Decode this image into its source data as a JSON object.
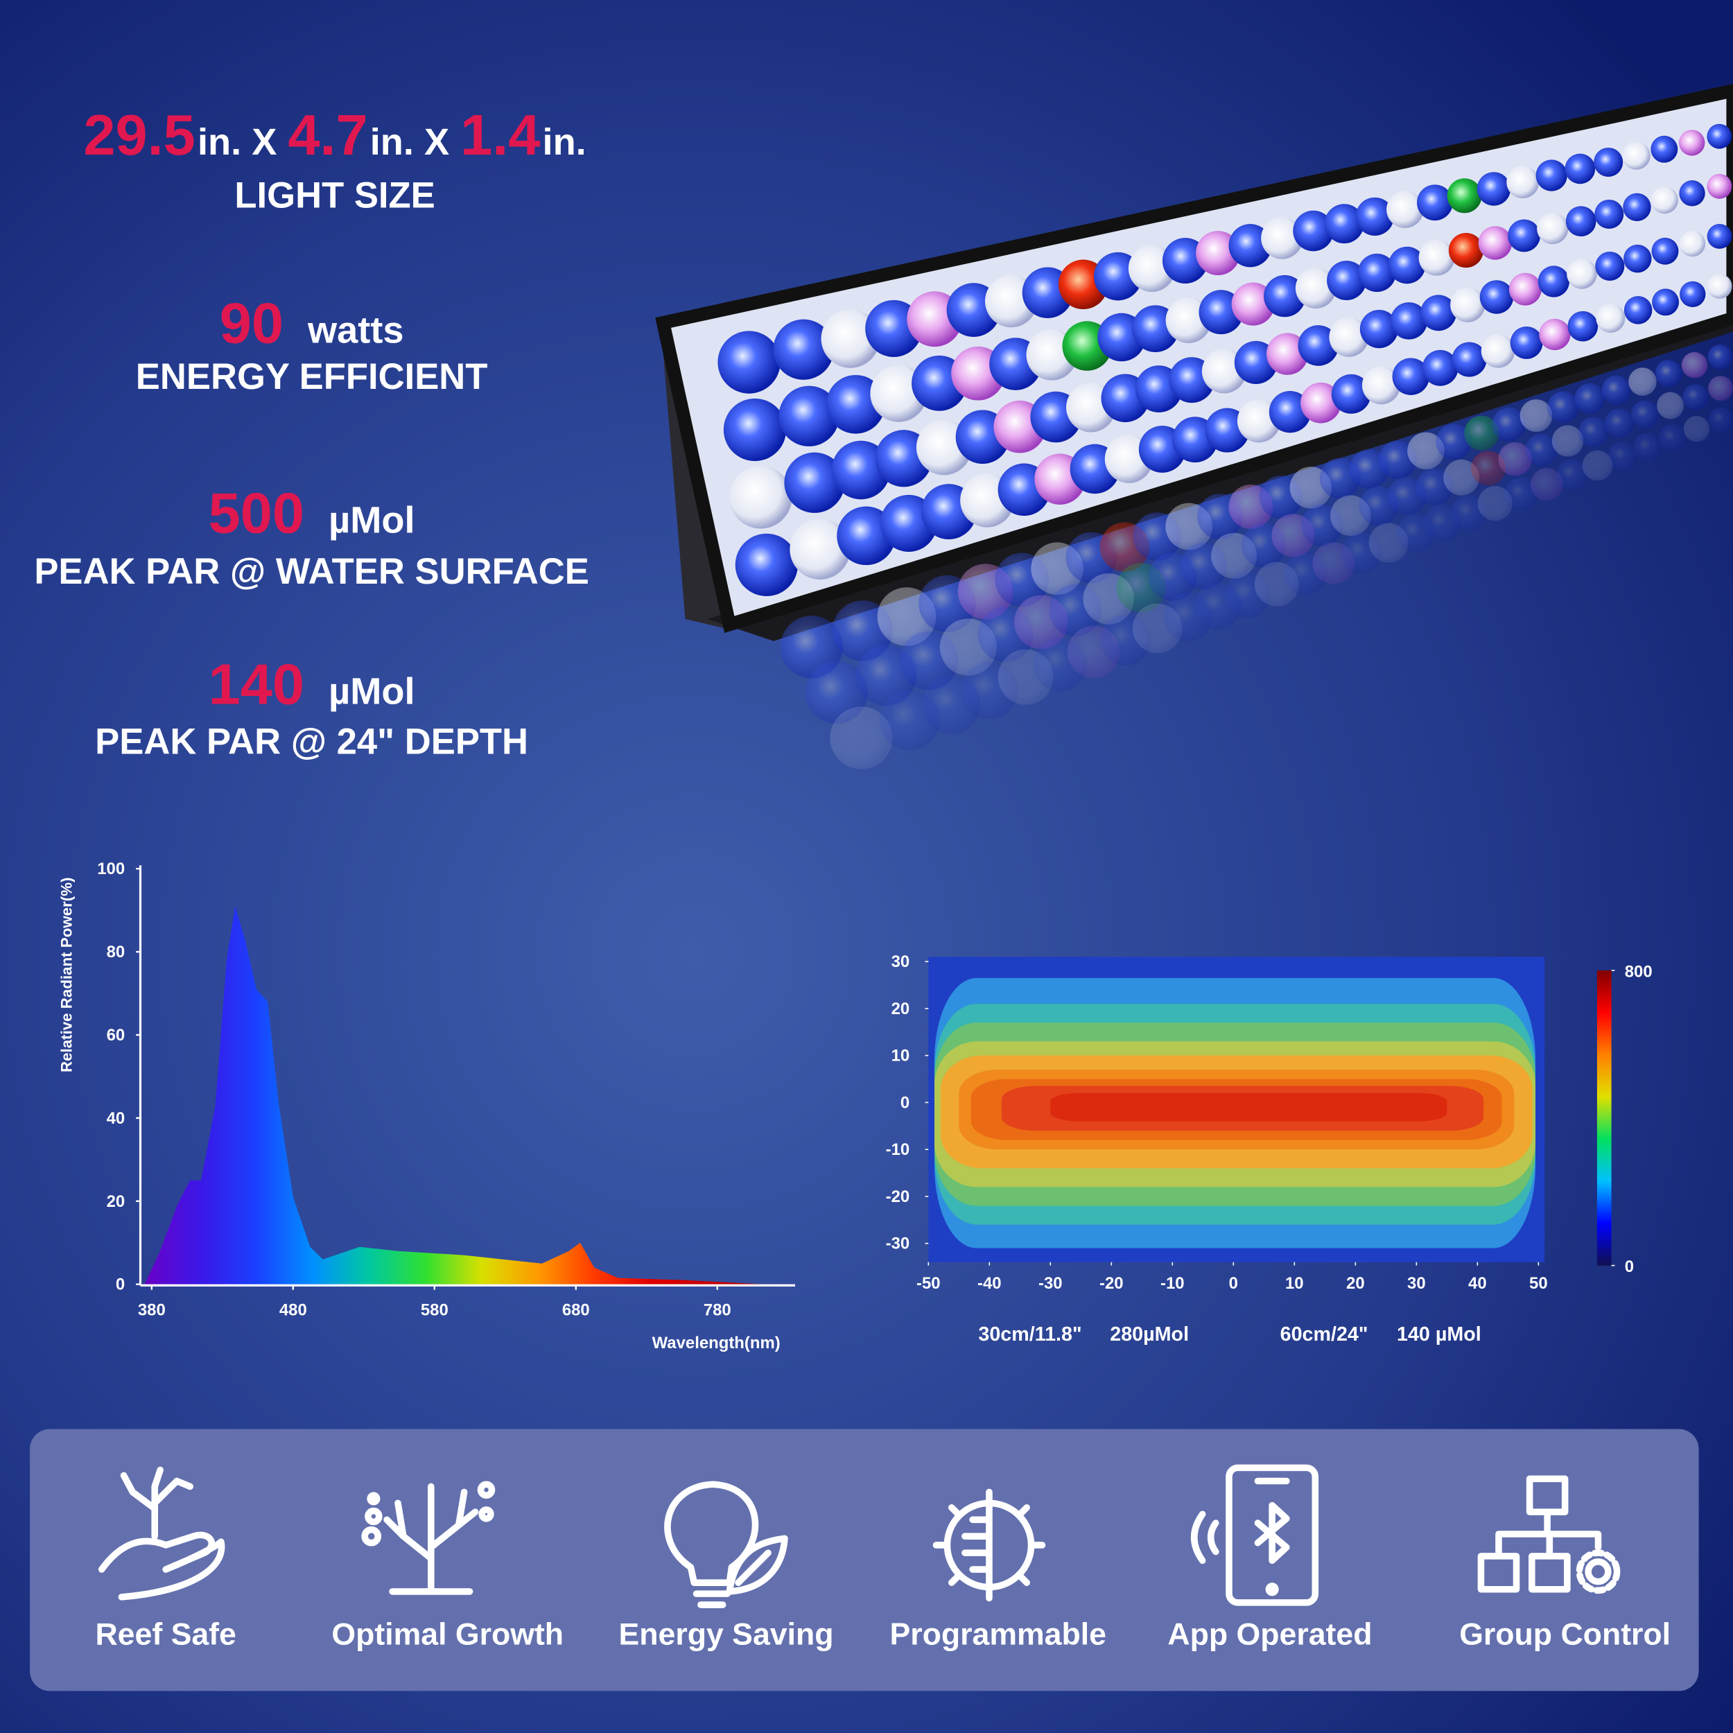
{
  "specs": [
    {
      "parts": [
        "29.5",
        "in. X",
        "4.7",
        "in. X",
        "1.4",
        "in."
      ],
      "label": "LIGHT SIZE"
    },
    {
      "parts": [
        "90",
        "watts"
      ],
      "label": "ENERGY EFFICIENT"
    },
    {
      "parts": [
        "500",
        "µMol"
      ],
      "label": "PEAK PAR @ WATER SURFACE"
    },
    {
      "parts": [
        "140",
        "µMol"
      ],
      "label": "PEAK PAR @ 24\" DEPTH"
    }
  ],
  "chart_data": [
    {
      "type": "area",
      "y_label": "Relative Radiant Power(%)",
      "x_label": "Wavelength(nm)",
      "x": [
        375,
        386,
        398,
        407,
        415,
        425,
        433,
        439,
        446,
        454,
        462,
        470,
        480,
        492,
        501,
        527,
        554,
        601,
        656,
        675,
        683,
        693,
        710,
        757,
        812
      ],
      "values": [
        0,
        8,
        19,
        25,
        25,
        43,
        78,
        91,
        83,
        71,
        68,
        43,
        21,
        9,
        6,
        9,
        8,
        7,
        5,
        8,
        10,
        4,
        1.5,
        1,
        0
      ],
      "xlim": [
        372,
        835
      ],
      "ylim": [
        0,
        100
      ],
      "xticks": [
        380,
        480,
        580,
        680,
        780
      ],
      "yticks": [
        0,
        20,
        40,
        60,
        80,
        100
      ],
      "colors": [
        "#6a00c8",
        "#3a18e8",
        "#1a40ff",
        "#0090ff",
        "#00c8a0",
        "#30e030",
        "#d8e000",
        "#ff9a00",
        "#ff3a00",
        "#e00000",
        "#c80000",
        "#c00000"
      ]
    },
    {
      "type": "contour",
      "xlim": [
        -50,
        51
      ],
      "ylim": [
        -34,
        31
      ],
      "xticks": [
        -50,
        -40,
        -30,
        -20,
        -10,
        0,
        10,
        20,
        30,
        40,
        50
      ],
      "yticks": [
        30,
        20,
        10,
        0,
        -10,
        -20,
        -30
      ],
      "background": "#1e3fc4",
      "levels": [
        {
          "value": 200,
          "color": "#2f8fe0",
          "x": [
            -49,
            49.5
          ],
          "y": [
            -31,
            26.5
          ]
        },
        {
          "value": 300,
          "color": "#3ab6b4",
          "x": [
            -49,
            49.5
          ],
          "y": [
            -26,
            21
          ]
        },
        {
          "value": 350,
          "color": "#6cc070",
          "x": [
            -49,
            49.5
          ],
          "y": [
            -22,
            17
          ]
        },
        {
          "value": 400,
          "color": "#b4c852",
          "x": [
            -49,
            49.5
          ],
          "y": [
            -18,
            13
          ]
        },
        {
          "value": 450,
          "color": "#f0a830",
          "x": [
            -48,
            49
          ],
          "y": [
            -14,
            10
          ]
        },
        {
          "value": 500,
          "color": "#f08a1c",
          "x": [
            -45,
            46
          ],
          "y": [
            -10,
            7
          ]
        },
        {
          "value": 550,
          "color": "#eb6a14",
          "x": [
            -43,
            44
          ],
          "y": [
            -8,
            5
          ]
        },
        {
          "value": 600,
          "color": "#e4421a",
          "x": [
            -38,
            41
          ],
          "y": [
            -6,
            3.5
          ]
        },
        {
          "value": 650,
          "color": "#dc2a0e",
          "x": [
            -30,
            35
          ],
          "y": [
            -4,
            2
          ]
        }
      ],
      "colorbar": {
        "lim": [
          0,
          800
        ],
        "ticks": [
          0,
          800
        ],
        "colors": [
          "#101050",
          "#0000ff",
          "#00c0ff",
          "#00e060",
          "#e0e000",
          "#ff8000",
          "#ff0000",
          "#800000"
        ]
      },
      "annotations": [
        "30cm/11.8\"",
        "280µMol",
        "60cm/24\"",
        "140 µMol"
      ]
    }
  ],
  "features": [
    "Reef Safe",
    "Optimal Growth",
    "Energy Saving",
    "Programmable",
    "App Operated",
    "Group Control"
  ]
}
